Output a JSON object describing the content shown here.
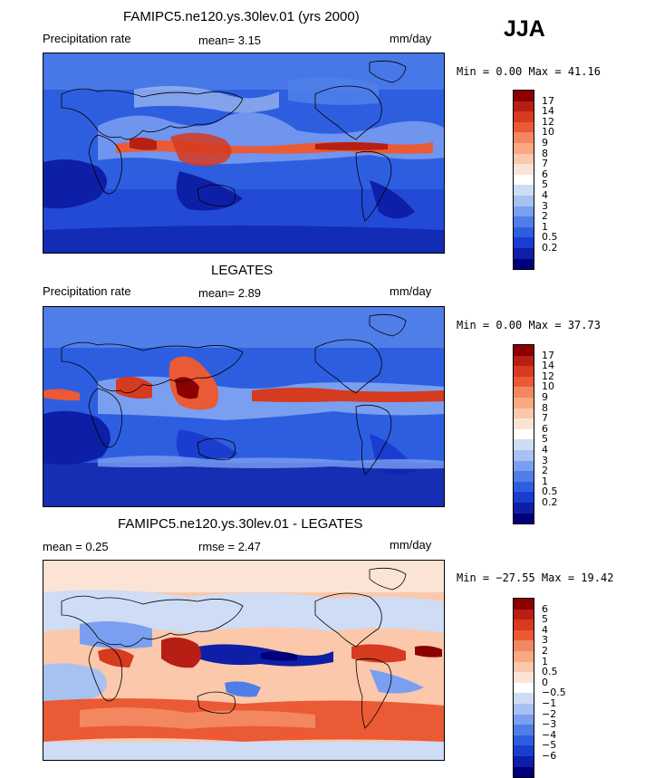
{
  "season": "JJA",
  "panels": [
    {
      "title": "FAMIPC5.ne120.ys.30lev.01 (yrs 2000)",
      "left_label": "Precipitation rate",
      "stat1": "mean=    3.15",
      "stat2": "",
      "units": "mm/day",
      "minmax": "Min =    0.00 Max =  41.16",
      "style": "model",
      "colorbar": {
        "colors": [
          "#8b0000",
          "#b81f14",
          "#d63a1f",
          "#ea5a34",
          "#f3875f",
          "#f8a883",
          "#fbc8ac",
          "#fbe4d6",
          "#ffffff",
          "#cfdcf5",
          "#a7c1f1",
          "#7b9ff0",
          "#4f7ee8",
          "#2e5ee0",
          "#1a3dd0",
          "#0d1fa6",
          "#00007a"
        ],
        "labels": [
          "17",
          "14",
          "12",
          "10",
          "9",
          "8",
          "7",
          "6",
          "5",
          "4",
          "3",
          "2",
          "1",
          "0.5",
          "0.2"
        ]
      }
    },
    {
      "title": "LEGATES",
      "left_label": "Precipitation rate",
      "stat1": "mean=    2.89",
      "stat2": "",
      "units": "mm/day",
      "minmax": "Min =    0.00 Max =  37.73",
      "style": "obs",
      "colorbar": {
        "colors": [
          "#8b0000",
          "#b81f14",
          "#d63a1f",
          "#ea5a34",
          "#f3875f",
          "#f8a883",
          "#fbc8ac",
          "#fbe4d6",
          "#ffffff",
          "#cfdcf5",
          "#a7c1f1",
          "#7b9ff0",
          "#4f7ee8",
          "#2e5ee0",
          "#1a3dd0",
          "#0d1fa6",
          "#00007a"
        ],
        "labels": [
          "17",
          "14",
          "12",
          "10",
          "9",
          "8",
          "7",
          "6",
          "5",
          "4",
          "3",
          "2",
          "1",
          "0.5",
          "0.2"
        ]
      }
    },
    {
      "title": "FAMIPC5.ne120.ys.30lev.01 - LEGATES",
      "left_label": "mean =    0.25",
      "stat1": "rmse =    2.47",
      "stat2": "",
      "units": "mm/day",
      "minmax": "Min = −27.55 Max =  19.42",
      "style": "diff",
      "colorbar": {
        "colors": [
          "#8b0000",
          "#b81f14",
          "#d63a1f",
          "#ea5a34",
          "#f3875f",
          "#f8a883",
          "#fbc8ac",
          "#fbe4d6",
          "#ffffff",
          "#cfdcf5",
          "#a7c1f1",
          "#7b9ff0",
          "#4f7ee8",
          "#2e5ee0",
          "#1a3dd0",
          "#0d1fa6",
          "#00007a"
        ],
        "labels": [
          "6",
          "5",
          "4",
          "3",
          "2",
          "1",
          "0.5",
          "0",
          "−0.5",
          "−1",
          "−2",
          "−3",
          "−4",
          "−5",
          "−6"
        ]
      }
    }
  ]
}
